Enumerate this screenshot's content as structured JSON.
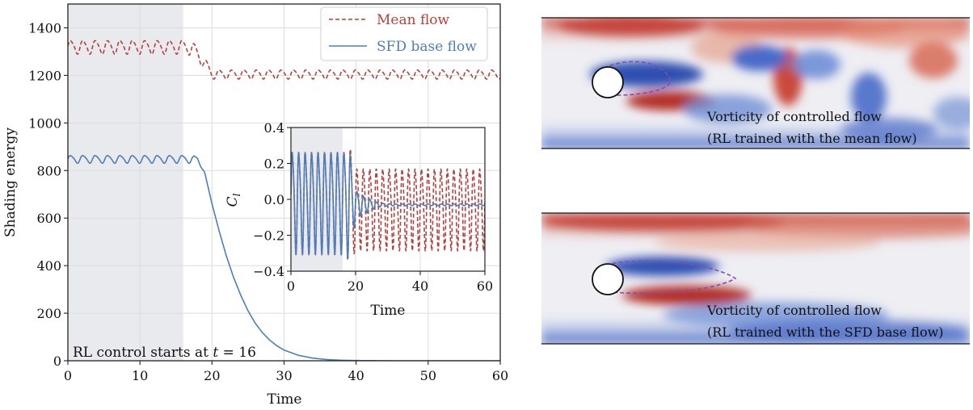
{
  "colors": {
    "mean_flow": "#b5413a",
    "sfd_flow": "#4f7db8",
    "shade": "#e9eaee"
  },
  "chart_data": [
    {
      "id": "main",
      "type": "line",
      "xlabel": "Time",
      "ylabel": "Shading energy",
      "xlim": [
        0,
        60
      ],
      "ylim": [
        0,
        1500
      ],
      "xticks": [
        0,
        10,
        20,
        30,
        40,
        50,
        60
      ],
      "yticks": [
        0,
        200,
        400,
        600,
        800,
        1000,
        1200,
        1400
      ],
      "grid": true,
      "legend_position": "top-right",
      "shaded_region": [
        0,
        16
      ],
      "annotation": "RL control starts at t = 16",
      "series": [
        {
          "name": "Mean flow",
          "style": "dashed",
          "color": "#b5413a",
          "x": [
            0,
            16,
            17,
            18,
            19,
            20,
            60
          ],
          "mean": [
            1320,
            1320,
            1320,
            1290,
            1250,
            1205,
            1205
          ],
          "amplitude": [
            30,
            30,
            35,
            30,
            25,
            20,
            20
          ],
          "period": 1.72
        },
        {
          "name": "SFD base flow",
          "style": "solid",
          "color": "#4f7db8",
          "x": [
            0,
            16,
            17,
            18,
            19,
            20,
            21,
            22,
            23,
            24,
            25,
            26,
            27,
            28,
            29,
            30,
            32,
            34,
            36,
            38,
            40,
            45,
            60
          ],
          "mean": [
            848,
            848,
            848,
            848,
            790,
            660,
            545,
            440,
            350,
            275,
            210,
            158,
            118,
            87,
            63,
            45,
            23,
            11,
            5,
            2,
            1,
            0,
            0
          ],
          "amplitude": [
            17,
            17,
            17,
            12,
            0,
            0,
            0,
            0,
            0,
            0,
            0,
            0,
            0,
            0,
            0,
            0,
            0,
            0,
            0,
            0,
            0,
            0,
            0
          ],
          "period": 1.72
        }
      ]
    },
    {
      "id": "inset",
      "type": "line",
      "xlabel": "Time",
      "ylabel": "C_l",
      "xlim": [
        0,
        60
      ],
      "ylim": [
        -0.4,
        0.4
      ],
      "xticks": [
        0,
        20,
        40,
        60
      ],
      "yticks": [
        -0.4,
        -0.2,
        0.0,
        0.2,
        0.4
      ],
      "ytick_labels": [
        "−0.4",
        "−0.2",
        "0.0",
        "0.2",
        "0.4"
      ],
      "shaded_region": [
        0,
        16
      ],
      "series": [
        {
          "name": "Mean flow",
          "style": "dashed",
          "color": "#b5413a",
          "x": [
            0,
            16,
            17,
            18,
            20,
            60
          ],
          "mean": [
            0,
            0,
            0,
            0,
            -0.04,
            -0.04
          ],
          "amplitude": [
            0.3,
            0.3,
            0.3,
            0.35,
            0.24,
            0.24
          ],
          "period": 2.0
        },
        {
          "name": "SFD base flow",
          "style": "solid",
          "color": "#4f7db8",
          "x": [
            0,
            16,
            17,
            18,
            20,
            22,
            24,
            26,
            28,
            32,
            60
          ],
          "mean": [
            0,
            0,
            0,
            0,
            -0.02,
            -0.03,
            -0.03,
            -0.03,
            -0.03,
            -0.03,
            -0.03
          ],
          "amplitude": [
            0.3,
            0.3,
            0.3,
            0.34,
            0.08,
            0.06,
            0.04,
            0.02,
            0.01,
            0.005,
            0.005
          ],
          "period": 2.0
        }
      ]
    }
  ],
  "panels": [
    {
      "caption_line1": "Vorticity of controlled flow",
      "caption_line2": "(RL trained with the mean flow)",
      "wake": "shedding"
    },
    {
      "caption_line1": "Vorticity of controlled flow",
      "caption_line2": "(RL trained with the SFD base flow)",
      "wake": "steady"
    }
  ]
}
